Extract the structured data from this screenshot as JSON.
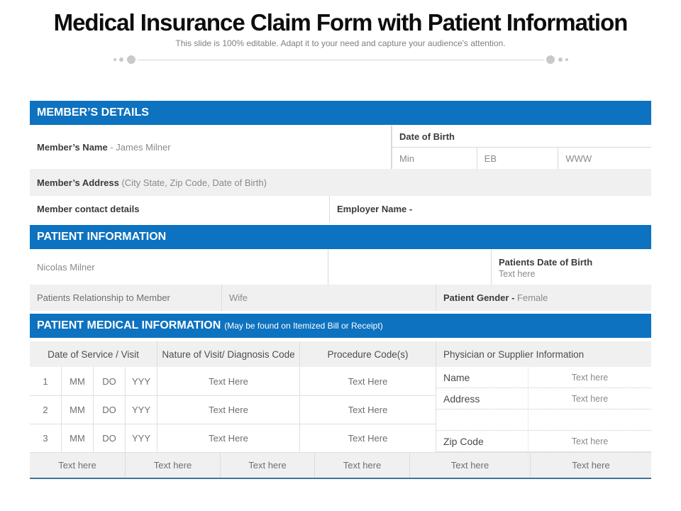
{
  "page": {
    "title": "Medical Insurance Claim Form with Patient Information",
    "subtitle": "This slide is 100% editable. Adapt it to your need and capture your audience's attention."
  },
  "colors": {
    "accent_blue": "#0d72bf",
    "row_gray": "#f0f0f0",
    "border_gray": "#d9d9d9",
    "bottom_line_blue": "#41719c",
    "label_dark": "#3b3b3b",
    "value_gray": "#8a8a8a"
  },
  "member_details": {
    "header": "MEMBER’S DETAILS",
    "name_label": "Member’s Name",
    "name_value": "- James Milner",
    "dob_label": "Date of Birth",
    "dob_cells": [
      "Min",
      "EB",
      "WWW"
    ],
    "address_label": "Member’s Address",
    "address_hint": "(City State, Zip Code, Date of Birth)",
    "contact_label": "Member contact details",
    "employer_label": "Employer Name -"
  },
  "patient_information": {
    "header": "PATIENT INFORMATION",
    "patient_name": "Nicolas Milner",
    "dob_label": "Patients Date of Birth",
    "dob_value": "Text here",
    "relationship_label": "Patients Relationship to Member",
    "relationship_value": "Wife",
    "gender_label": "Patient Gender -",
    "gender_value": "Female"
  },
  "medical_information": {
    "header": "PATIENT MEDICAL INFORMATION",
    "header_note": "(May be found on Itemized Bill or Receipt)",
    "columns": [
      "Date of Service / Visit",
      "Nature of Visit/ Diagnosis Code",
      "Procedure Code(s)",
      "Physician or Supplier Information"
    ],
    "rows": [
      {
        "num": "1",
        "mm": "MM",
        "dd": "DO",
        "yy": "YYY",
        "nature": "Text Here",
        "procedure": "Text Here"
      },
      {
        "num": "2",
        "mm": "MM",
        "dd": "DO",
        "yy": "YYY",
        "nature": "Text Here",
        "procedure": "Text Here"
      },
      {
        "num": "3",
        "mm": "MM",
        "dd": "DO",
        "yy": "YYY",
        "nature": "Text Here",
        "procedure": "Text Here"
      }
    ],
    "physician": [
      {
        "label": "Name",
        "value": "Text here"
      },
      {
        "label": "Address",
        "value": "Text here"
      },
      {
        "label": "",
        "value": ""
      },
      {
        "label": "Zip Code",
        "value": "Text here"
      }
    ],
    "footer_cells": [
      "Text here",
      "Text here",
      "Text here",
      "Text here",
      "Text here",
      "Text here"
    ]
  }
}
